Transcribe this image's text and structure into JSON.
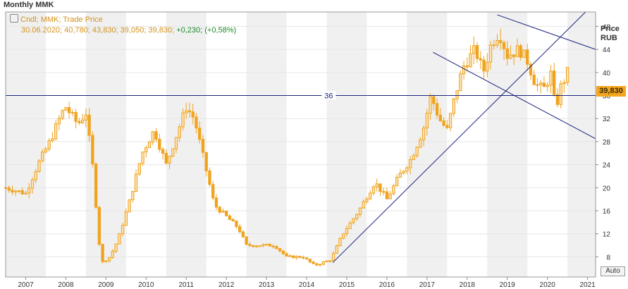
{
  "window": {
    "title": "Monthly MMK"
  },
  "legend": {
    "series": "Cndl; MMK; Trade Price",
    "values": "30.06.2020; 40,780; 43,830; 39,050; 39,830;",
    "change": "+0,230; (+0,58%)"
  },
  "price_axis": {
    "title_line1": "Price",
    "title_line2": "RUB",
    "last_value": "39,830"
  },
  "controls": {
    "auto_label": "Auto"
  },
  "colors": {
    "candle": "#f0a31e",
    "line": "#1a237e",
    "grid": "#e6e6e6",
    "band": "#f0f0f0"
  },
  "chart_data": {
    "type": "candlestick",
    "xlim": [
      2006.5,
      2021.2
    ],
    "ylim": [
      4.5,
      50.5
    ],
    "x_ticks": [
      "2007",
      "2008",
      "2009",
      "2010",
      "2011",
      "2012",
      "2013",
      "2014",
      "2015",
      "2016",
      "2017",
      "2018",
      "2019",
      "2020",
      "2021"
    ],
    "y_ticks": [
      "8",
      "12",
      "16",
      "20",
      "24",
      "28",
      "32",
      "36",
      "40",
      "44",
      "48"
    ],
    "key_points": [
      {
        "x": 2006.5,
        "y": 20
      },
      {
        "x": 2007.0,
        "y": 19
      },
      {
        "x": 2007.3,
        "y": 24
      },
      {
        "x": 2007.6,
        "y": 28
      },
      {
        "x": 2007.9,
        "y": 33
      },
      {
        "x": 2008.0,
        "y": 34
      },
      {
        "x": 2008.3,
        "y": 31
      },
      {
        "x": 2008.5,
        "y": 33
      },
      {
        "x": 2008.7,
        "y": 22
      },
      {
        "x": 2008.8,
        "y": 12
      },
      {
        "x": 2008.9,
        "y": 7
      },
      {
        "x": 2009.1,
        "y": 8
      },
      {
        "x": 2009.3,
        "y": 11
      },
      {
        "x": 2009.6,
        "y": 18
      },
      {
        "x": 2009.9,
        "y": 26
      },
      {
        "x": 2010.2,
        "y": 30
      },
      {
        "x": 2010.5,
        "y": 24
      },
      {
        "x": 2010.8,
        "y": 30
      },
      {
        "x": 2011.0,
        "y": 34
      },
      {
        "x": 2011.2,
        "y": 32
      },
      {
        "x": 2011.4,
        "y": 26
      },
      {
        "x": 2011.7,
        "y": 17
      },
      {
        "x": 2012.0,
        "y": 15
      },
      {
        "x": 2012.3,
        "y": 13
      },
      {
        "x": 2012.5,
        "y": 10
      },
      {
        "x": 2012.9,
        "y": 10
      },
      {
        "x": 2013.2,
        "y": 10
      },
      {
        "x": 2013.5,
        "y": 8
      },
      {
        "x": 2013.9,
        "y": 8
      },
      {
        "x": 2014.2,
        "y": 6.5
      },
      {
        "x": 2014.6,
        "y": 7.5
      },
      {
        "x": 2014.9,
        "y": 12
      },
      {
        "x": 2015.3,
        "y": 16
      },
      {
        "x": 2015.7,
        "y": 21
      },
      {
        "x": 2016.0,
        "y": 18
      },
      {
        "x": 2016.3,
        "y": 22
      },
      {
        "x": 2016.6,
        "y": 25
      },
      {
        "x": 2016.9,
        "y": 30
      },
      {
        "x": 2017.1,
        "y": 36
      },
      {
        "x": 2017.3,
        "y": 32
      },
      {
        "x": 2017.5,
        "y": 30
      },
      {
        "x": 2017.7,
        "y": 36
      },
      {
        "x": 2017.9,
        "y": 41
      },
      {
        "x": 2018.2,
        "y": 44
      },
      {
        "x": 2018.4,
        "y": 40
      },
      {
        "x": 2018.6,
        "y": 45
      },
      {
        "x": 2018.8,
        "y": 47
      },
      {
        "x": 2019.0,
        "y": 43
      },
      {
        "x": 2019.3,
        "y": 44
      },
      {
        "x": 2019.5,
        "y": 42
      },
      {
        "x": 2019.7,
        "y": 38
      },
      {
        "x": 2019.9,
        "y": 37
      },
      {
        "x": 2020.1,
        "y": 40
      },
      {
        "x": 2020.2,
        "y": 33
      },
      {
        "x": 2020.3,
        "y": 37
      },
      {
        "x": 2020.5,
        "y": 40
      }
    ],
    "horizontal_line": {
      "value": 36,
      "label": "36"
    },
    "trend_lines": [
      {
        "from": [
          2014.65,
          7.0
        ],
        "to": [
          2020.95,
          50.5
        ]
      },
      {
        "from": [
          2018.75,
          50.0
        ],
        "to": [
          2021.2,
          44.0
        ]
      },
      {
        "from": [
          2017.15,
          43.5
        ],
        "to": [
          2021.2,
          28.5
        ]
      }
    ],
    "last_value": 39.83,
    "grid": true
  }
}
